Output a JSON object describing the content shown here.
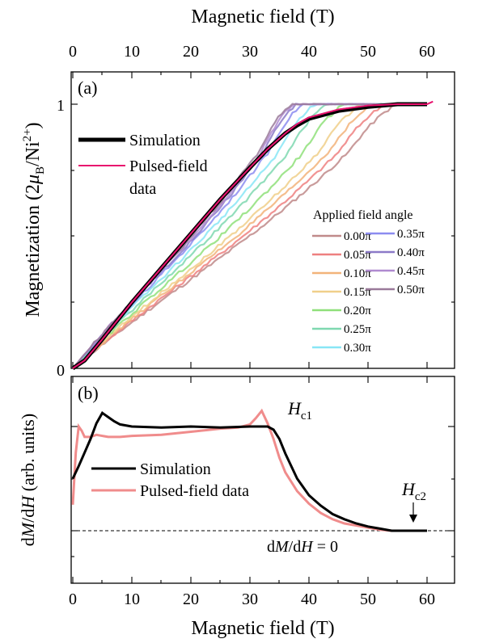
{
  "chart_data": [
    {
      "panel_label": "(a)",
      "type": "line",
      "xlabel_top": "Magnetic field (T)",
      "ylabel": "Magnetization (2μB/Ni2+)",
      "ylabel_parts": {
        "a": "Magnetization (2",
        "mu": "μ",
        "b": "B",
        "c": "/Ni",
        "d": "2+",
        "e": ")"
      },
      "xlim": [
        0,
        65
      ],
      "ylim": [
        0,
        1.05
      ],
      "xticks": [
        "0",
        "10",
        "20",
        "30",
        "40",
        "50",
        "60"
      ],
      "yticks": [
        "0",
        "1"
      ],
      "legend_main": [
        {
          "label": "Simulation",
          "color": "#000000"
        },
        {
          "label": "Pulsed-field",
          "label2": "data",
          "color": "#e8136e"
        }
      ],
      "angle_legend_title": "Applied field angle",
      "angle_series": [
        {
          "name": "0.00π",
          "color": "#c08a8a",
          "saturation_field": 55
        },
        {
          "name": "0.05π",
          "color": "#ee8080",
          "saturation_field": 53
        },
        {
          "name": "0.10π",
          "color": "#f2b37a",
          "saturation_field": 51
        },
        {
          "name": "0.15π",
          "color": "#f0cf8a",
          "saturation_field": 49
        },
        {
          "name": "0.20π",
          "color": "#8fe07a",
          "saturation_field": 46
        },
        {
          "name": "0.25π",
          "color": "#7fd8b0",
          "saturation_field": 43
        },
        {
          "name": "0.30π",
          "color": "#88e6f6",
          "saturation_field": 41
        },
        {
          "name": "0.35π",
          "color": "#8c8cf0",
          "saturation_field": 39
        },
        {
          "name": "0.40π",
          "color": "#8c7ac8",
          "saturation_field": 38
        },
        {
          "name": "0.45π",
          "color": "#b08ad0",
          "saturation_field": 37.5
        },
        {
          "name": "0.50π",
          "color": "#9a7a9a",
          "saturation_field": 37
        }
      ],
      "simulation_curve": {
        "x": [
          0,
          2,
          5,
          10,
          15,
          20,
          25,
          30,
          33,
          36,
          38,
          40,
          45,
          50,
          55,
          60
        ],
        "y": [
          0,
          0.03,
          0.11,
          0.25,
          0.38,
          0.51,
          0.64,
          0.76,
          0.83,
          0.89,
          0.92,
          0.945,
          0.975,
          0.99,
          1.0,
          1.0
        ]
      },
      "pulsed_curve": {
        "x": [
          0,
          2,
          5,
          10,
          15,
          20,
          25,
          30,
          33,
          36,
          38,
          40,
          45,
          50,
          55,
          60,
          61
        ],
        "y": [
          0,
          0.03,
          0.11,
          0.25,
          0.38,
          0.51,
          0.64,
          0.76,
          0.83,
          0.89,
          0.925,
          0.95,
          0.98,
          0.995,
          1.0,
          1.0,
          1.01
        ]
      }
    },
    {
      "panel_label": "(b)",
      "type": "line",
      "xlabel": "Magnetic field (T)",
      "ylabel": "dM/dH (arb. units)",
      "ylabel_parts": {
        "a": "d",
        "b": "M",
        "c": "/d",
        "d": "H",
        "e": " (arb. units)"
      },
      "xlim": [
        0,
        65
      ],
      "ylim": [
        -0.25,
        1.35
      ],
      "xticks": [
        "0",
        "10",
        "20",
        "30",
        "40",
        "50",
        "60"
      ],
      "legend": [
        {
          "label": "Simulation",
          "color": "#000000"
        },
        {
          "label": "Pulsed-field data",
          "color": "#f08c8c"
        }
      ],
      "annotations": {
        "hc1": {
          "main": "H",
          "sub": "c1",
          "x": 34.5,
          "y": 1.1
        },
        "hc2": {
          "main": "H",
          "sub": "c2",
          "x": 55,
          "y": 0.2
        },
        "zero_line": {
          "a": "d",
          "b": "M",
          "c": "/d",
          "d": "H",
          "e": " = 0"
        }
      },
      "simulation_curve": {
        "x": [
          0,
          1,
          2,
          3,
          4,
          5,
          6,
          7,
          8,
          10,
          15,
          20,
          25,
          30,
          33,
          34,
          35,
          36,
          37,
          38,
          40,
          42,
          44,
          46,
          48,
          50,
          52,
          54,
          56,
          58,
          60
        ],
        "y": [
          0.5,
          0.62,
          0.75,
          0.88,
          1.03,
          1.13,
          1.09,
          1.05,
          1.02,
          1.0,
          0.99,
          1.0,
          0.99,
          1.0,
          1.0,
          0.97,
          0.88,
          0.74,
          0.62,
          0.5,
          0.34,
          0.24,
          0.16,
          0.11,
          0.07,
          0.04,
          0.02,
          0.0,
          0.0,
          0.0,
          0.0
        ]
      },
      "pulsed_curve": {
        "x": [
          0,
          0.5,
          1,
          1.5,
          2,
          3,
          4,
          6,
          8,
          10,
          15,
          20,
          25,
          28,
          30,
          31,
          32,
          33,
          34,
          35,
          36,
          38,
          40,
          42,
          44,
          46,
          48,
          50,
          52,
          54,
          56,
          58,
          60
        ],
        "y": [
          0.25,
          0.75,
          1.0,
          0.96,
          0.9,
          0.9,
          0.92,
          0.9,
          0.9,
          0.91,
          0.92,
          0.95,
          0.98,
          0.99,
          1.02,
          1.08,
          1.15,
          1.03,
          0.88,
          0.7,
          0.56,
          0.38,
          0.26,
          0.17,
          0.11,
          0.07,
          0.05,
          0.03,
          0.01,
          0.0,
          0.0,
          0.0,
          0.0
        ]
      }
    }
  ]
}
